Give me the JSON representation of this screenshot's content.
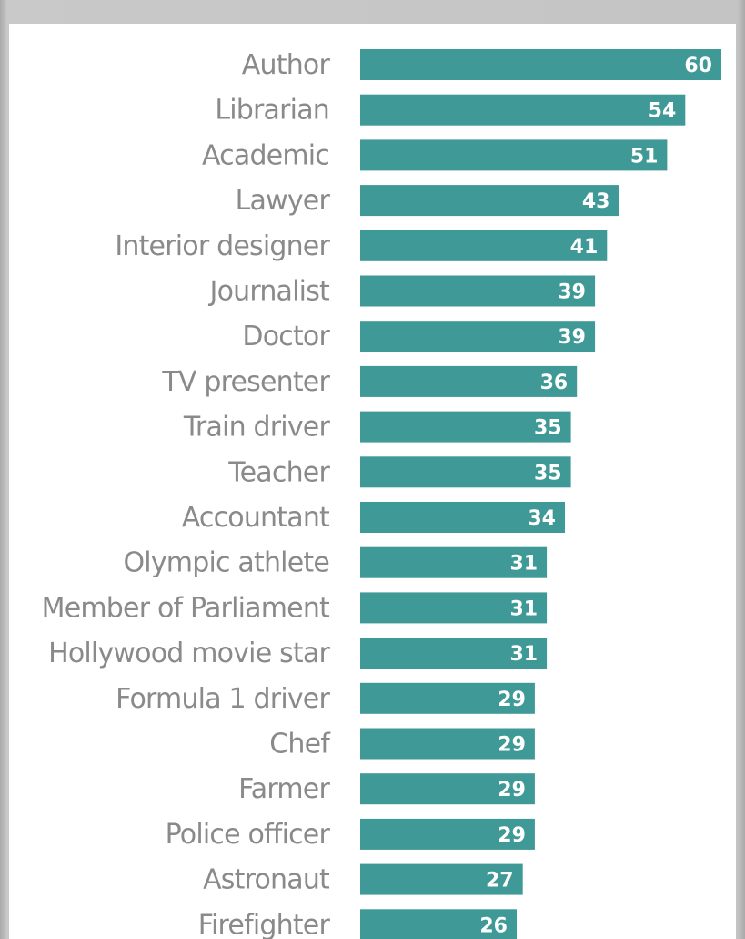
{
  "chart_data": {
    "type": "bar",
    "orientation": "horizontal",
    "categories": [
      "Author",
      "Librarian",
      "Academic",
      "Lawyer",
      "Interior designer",
      "Journalist",
      "Doctor",
      "TV presenter",
      "Train driver",
      "Teacher",
      "Accountant",
      "Olympic athlete",
      "Member of Parliament",
      "Hollywood movie star",
      "Formula 1 driver",
      "Chef",
      "Farmer",
      "Police officer",
      "Astronaut",
      "Firefighter"
    ],
    "values": [
      60,
      54,
      51,
      43,
      41,
      39,
      39,
      36,
      35,
      35,
      34,
      31,
      31,
      31,
      29,
      29,
      29,
      29,
      27,
      26
    ],
    "value_labels": [
      "60",
      "54",
      "51",
      "43",
      "41",
      "39",
      "39",
      "36",
      "35",
      "35",
      "34",
      "31",
      "31",
      "31",
      "29",
      "29",
      "29",
      "29",
      "27",
      "26"
    ],
    "title": "",
    "xlabel": "",
    "ylabel": "",
    "xlim": [
      0,
      60
    ],
    "grid": false,
    "data_labels": "inside-end",
    "colors": {
      "bar": "#3f9996",
      "category_text": "#8a8a8a",
      "value_text": "#ffffff"
    }
  }
}
